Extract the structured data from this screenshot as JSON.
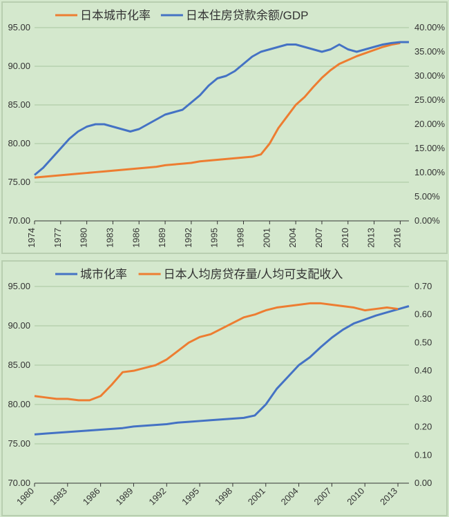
{
  "global_background": "#d4e8cd",
  "chart1": {
    "type": "dual-axis-line",
    "x_min": 1974,
    "x_max": 2017,
    "x_tick_start": 1974,
    "x_tick_step": 3,
    "x_tick_end": 2016,
    "y1_min": 70,
    "y1_max": 95,
    "y1_tick_step": 5,
    "y1_decimals": 2,
    "y2_min": 0.0,
    "y2_max": 0.4,
    "y2_tick_step": 0.05,
    "y2_percent": true,
    "y2_pct_decimals": 2,
    "legend_series_order": [
      "s1",
      "s2"
    ],
    "legend_position": "top",
    "s1": {
      "label": "日本城市化率",
      "color": "#ed7d31",
      "axis": "left",
      "width": 3,
      "points": [
        [
          1974,
          75.6
        ],
        [
          1975,
          75.7
        ],
        [
          1976,
          75.8
        ],
        [
          1977,
          75.9
        ],
        [
          1978,
          76.0
        ],
        [
          1979,
          76.1
        ],
        [
          1980,
          76.2
        ],
        [
          1981,
          76.3
        ],
        [
          1982,
          76.4
        ],
        [
          1983,
          76.5
        ],
        [
          1984,
          76.6
        ],
        [
          1985,
          76.7
        ],
        [
          1986,
          76.8
        ],
        [
          1987,
          76.9
        ],
        [
          1988,
          77.0
        ],
        [
          1989,
          77.2
        ],
        [
          1990,
          77.3
        ],
        [
          1991,
          77.4
        ],
        [
          1992,
          77.5
        ],
        [
          1993,
          77.7
        ],
        [
          1994,
          77.8
        ],
        [
          1995,
          77.9
        ],
        [
          1996,
          78.0
        ],
        [
          1997,
          78.1
        ],
        [
          1998,
          78.2
        ],
        [
          1999,
          78.3
        ],
        [
          2000,
          78.6
        ],
        [
          2001,
          80.0
        ],
        [
          2002,
          82.0
        ],
        [
          2003,
          83.5
        ],
        [
          2004,
          85.0
        ],
        [
          2005,
          86.0
        ],
        [
          2006,
          87.3
        ],
        [
          2007,
          88.5
        ],
        [
          2008,
          89.5
        ],
        [
          2009,
          90.3
        ],
        [
          2010,
          90.8
        ],
        [
          2011,
          91.3
        ],
        [
          2012,
          91.7
        ],
        [
          2013,
          92.1
        ],
        [
          2014,
          92.5
        ],
        [
          2015,
          92.8
        ],
        [
          2016,
          93.0
        ]
      ]
    },
    "s2": {
      "label": "日本住房贷款余额/GDP",
      "color": "#4472c4",
      "axis": "right",
      "width": 3,
      "points": [
        [
          1974,
          0.095
        ],
        [
          1975,
          0.11
        ],
        [
          1976,
          0.13
        ],
        [
          1977,
          0.15
        ],
        [
          1978,
          0.17
        ],
        [
          1979,
          0.185
        ],
        [
          1980,
          0.195
        ],
        [
          1981,
          0.2
        ],
        [
          1982,
          0.2
        ],
        [
          1983,
          0.195
        ],
        [
          1984,
          0.19
        ],
        [
          1985,
          0.185
        ],
        [
          1986,
          0.19
        ],
        [
          1987,
          0.2
        ],
        [
          1988,
          0.21
        ],
        [
          1989,
          0.22
        ],
        [
          1990,
          0.225
        ],
        [
          1991,
          0.23
        ],
        [
          1992,
          0.245
        ],
        [
          1993,
          0.26
        ],
        [
          1994,
          0.28
        ],
        [
          1995,
          0.295
        ],
        [
          1996,
          0.3
        ],
        [
          1997,
          0.31
        ],
        [
          1998,
          0.325
        ],
        [
          1999,
          0.34
        ],
        [
          2000,
          0.35
        ],
        [
          2001,
          0.355
        ],
        [
          2002,
          0.36
        ],
        [
          2003,
          0.365
        ],
        [
          2004,
          0.365
        ],
        [
          2005,
          0.36
        ],
        [
          2006,
          0.355
        ],
        [
          2007,
          0.35
        ],
        [
          2008,
          0.355
        ],
        [
          2009,
          0.365
        ],
        [
          2010,
          0.355
        ],
        [
          2011,
          0.35
        ],
        [
          2012,
          0.355
        ],
        [
          2013,
          0.36
        ],
        [
          2014,
          0.365
        ],
        [
          2015,
          0.368
        ],
        [
          2016,
          0.37
        ],
        [
          2017,
          0.37
        ]
      ]
    },
    "axis_fontsize": 13,
    "legend_fontsize": 17,
    "grid_color": "#a8c6a0",
    "tick_color": "#333333",
    "border_color": "#b8ceb0",
    "xtick_rotate": -90
  },
  "chart2": {
    "type": "dual-axis-line",
    "x_min": 1980,
    "x_max": 2014,
    "x_tick_start": 1980,
    "x_tick_step": 3,
    "x_tick_end": 2013,
    "y1_min": 70,
    "y1_max": 95,
    "y1_tick_step": 5,
    "y1_decimals": 2,
    "y2_min": 0.0,
    "y2_max": 0.7,
    "y2_tick_step": 0.1,
    "y2_percent": false,
    "y2_pct_decimals": 2,
    "legend_series_order": [
      "s1",
      "s2"
    ],
    "legend_position": "top",
    "s1": {
      "label": "城市化率",
      "color": "#4472c4",
      "axis": "left",
      "width": 3,
      "points": [
        [
          1980,
          76.2
        ],
        [
          1981,
          76.3
        ],
        [
          1982,
          76.4
        ],
        [
          1983,
          76.5
        ],
        [
          1984,
          76.6
        ],
        [
          1985,
          76.7
        ],
        [
          1986,
          76.8
        ],
        [
          1987,
          76.9
        ],
        [
          1988,
          77.0
        ],
        [
          1989,
          77.2
        ],
        [
          1990,
          77.3
        ],
        [
          1991,
          77.4
        ],
        [
          1992,
          77.5
        ],
        [
          1993,
          77.7
        ],
        [
          1994,
          77.8
        ],
        [
          1995,
          77.9
        ],
        [
          1996,
          78.0
        ],
        [
          1997,
          78.1
        ],
        [
          1998,
          78.2
        ],
        [
          1999,
          78.3
        ],
        [
          2000,
          78.6
        ],
        [
          2001,
          80.0
        ],
        [
          2002,
          82.0
        ],
        [
          2003,
          83.5
        ],
        [
          2004,
          85.0
        ],
        [
          2005,
          86.0
        ],
        [
          2006,
          87.3
        ],
        [
          2007,
          88.5
        ],
        [
          2008,
          89.5
        ],
        [
          2009,
          90.3
        ],
        [
          2010,
          90.8
        ],
        [
          2011,
          91.3
        ],
        [
          2012,
          91.7
        ],
        [
          2013,
          92.1
        ],
        [
          2014,
          92.5
        ]
      ]
    },
    "s2": {
      "label": "日本人均房贷存量/人均可支配收入",
      "color": "#ed7d31",
      "axis": "right",
      "width": 3,
      "points": [
        [
          1980,
          0.31
        ],
        [
          1981,
          0.305
        ],
        [
          1982,
          0.3
        ],
        [
          1983,
          0.3
        ],
        [
          1984,
          0.295
        ],
        [
          1985,
          0.295
        ],
        [
          1986,
          0.31
        ],
        [
          1987,
          0.35
        ],
        [
          1988,
          0.395
        ],
        [
          1989,
          0.4
        ],
        [
          1990,
          0.41
        ],
        [
          1991,
          0.42
        ],
        [
          1992,
          0.44
        ],
        [
          1993,
          0.47
        ],
        [
          1994,
          0.5
        ],
        [
          1995,
          0.52
        ],
        [
          1996,
          0.53
        ],
        [
          1997,
          0.55
        ],
        [
          1998,
          0.57
        ],
        [
          1999,
          0.59
        ],
        [
          2000,
          0.6
        ],
        [
          2001,
          0.615
        ],
        [
          2002,
          0.625
        ],
        [
          2003,
          0.63
        ],
        [
          2004,
          0.635
        ],
        [
          2005,
          0.64
        ],
        [
          2006,
          0.64
        ],
        [
          2007,
          0.635
        ],
        [
          2008,
          0.63
        ],
        [
          2009,
          0.625
        ],
        [
          2010,
          0.615
        ],
        [
          2011,
          0.62
        ],
        [
          2012,
          0.625
        ],
        [
          2013,
          0.62
        ]
      ]
    },
    "axis_fontsize": 13,
    "legend_fontsize": 17,
    "grid_color": "#a8c6a0",
    "tick_color": "#333333",
    "border_color": "#b8ceb0",
    "xtick_rotate": -45
  }
}
